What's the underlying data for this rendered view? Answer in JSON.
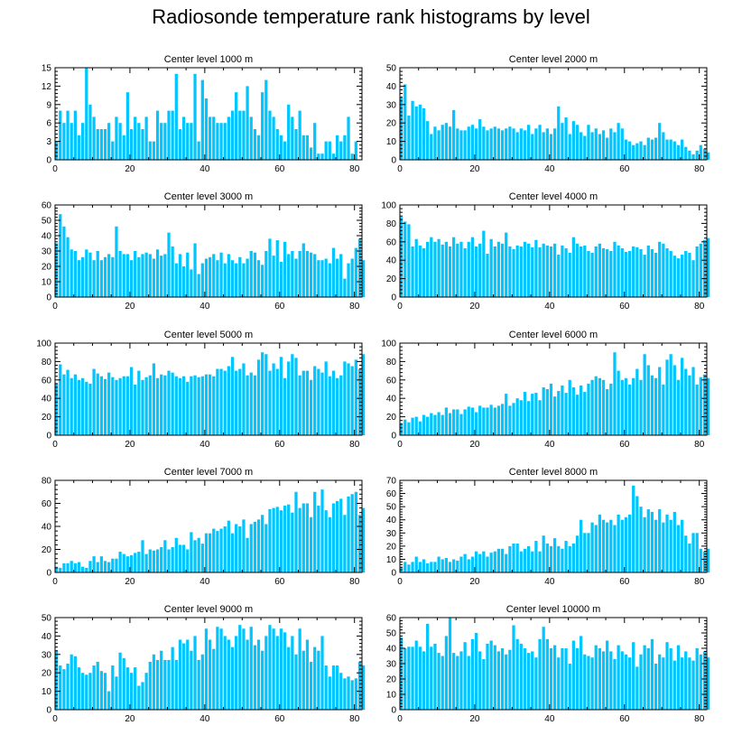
{
  "title": "Radiosonde temperature rank histograms by level",
  "colors": {
    "bar": "#00c5ff",
    "axis": "#000000"
  },
  "chart_data": [
    {
      "type": "bar",
      "title": "Center level 1000 m",
      "xlim": [
        0,
        82
      ],
      "ylim": [
        0,
        15
      ],
      "xticks": [
        0,
        20,
        40,
        60,
        80
      ],
      "yticks": [
        0,
        3,
        6,
        9,
        12,
        15
      ],
      "values": [
        3,
        8,
        6,
        8,
        6,
        8,
        4,
        6,
        15,
        9,
        7,
        5,
        5,
        5,
        6,
        3,
        7,
        6,
        4,
        11,
        5,
        7,
        6,
        5,
        7,
        3,
        3,
        8,
        6,
        6,
        8,
        8,
        14,
        5,
        7,
        6,
        6,
        14,
        3,
        13,
        10,
        7,
        7,
        6,
        6,
        6,
        7,
        8,
        11,
        8,
        8,
        12,
        7,
        5,
        4,
        11,
        13,
        8,
        7,
        5,
        4,
        3,
        9,
        7,
        5,
        8,
        4,
        4,
        2,
        6,
        1,
        1,
        3,
        3,
        1,
        4,
        3,
        4,
        7,
        1,
        3
      ]
    },
    {
      "type": "bar",
      "title": "Center level 2000 m",
      "xlim": [
        0,
        82
      ],
      "ylim": [
        0,
        50
      ],
      "xticks": [
        0,
        20,
        40,
        60,
        80
      ],
      "yticks": [
        0,
        10,
        20,
        30,
        40,
        50
      ],
      "values": [
        34,
        41,
        24,
        32,
        29,
        30,
        28,
        21,
        14,
        18,
        16,
        19,
        20,
        18,
        27,
        17,
        16,
        16,
        18,
        19,
        17,
        22,
        18,
        16,
        17,
        18,
        17,
        16,
        17,
        18,
        17,
        15,
        17,
        16,
        19,
        14,
        17,
        19,
        15,
        17,
        14,
        17,
        29,
        20,
        23,
        14,
        21,
        19,
        15,
        13,
        19,
        15,
        17,
        14,
        16,
        12,
        17,
        15,
        20,
        17,
        11,
        10,
        8,
        9,
        10,
        8,
        12,
        11,
        12,
        20,
        15,
        11,
        11,
        10,
        8,
        11,
        7,
        5,
        3,
        5,
        8,
        6,
        4
      ]
    },
    {
      "type": "bar",
      "title": "Center level 3000 m",
      "xlim": [
        0,
        82
      ],
      "ylim": [
        0,
        60
      ],
      "xticks": [
        0,
        20,
        40,
        60,
        80
      ],
      "yticks": [
        0,
        10,
        20,
        30,
        40,
        50,
        60
      ],
      "values": [
        35,
        54,
        46,
        39,
        31,
        30,
        24,
        26,
        31,
        29,
        24,
        30,
        24,
        26,
        28,
        26,
        46,
        30,
        28,
        28,
        24,
        30,
        26,
        28,
        29,
        28,
        25,
        31,
        27,
        28,
        42,
        33,
        22,
        28,
        20,
        29,
        18,
        35,
        15,
        22,
        25,
        26,
        28,
        24,
        29,
        22,
        28,
        24,
        22,
        26,
        22,
        25,
        30,
        29,
        24,
        21,
        30,
        38,
        27,
        37,
        23,
        36,
        28,
        30,
        25,
        30,
        35,
        30,
        29,
        28,
        24,
        24,
        25,
        22,
        32,
        25,
        28,
        12,
        22,
        25,
        32,
        38,
        24
      ]
    },
    {
      "type": "bar",
      "title": "Center level 4000 m",
      "xlim": [
        0,
        82
      ],
      "ylim": [
        0,
        100
      ],
      "xticks": [
        0,
        20,
        40,
        60,
        80
      ],
      "yticks": [
        0,
        20,
        40,
        60,
        80,
        100
      ],
      "values": [
        87,
        82,
        79,
        55,
        63,
        56,
        53,
        60,
        65,
        60,
        63,
        57,
        60,
        55,
        65,
        58,
        60,
        53,
        60,
        65,
        55,
        58,
        72,
        47,
        63,
        55,
        60,
        58,
        70,
        55,
        52,
        56,
        55,
        60,
        58,
        54,
        62,
        54,
        58,
        56,
        55,
        58,
        46,
        56,
        53,
        48,
        65,
        58,
        55,
        56,
        50,
        48,
        55,
        58,
        53,
        52,
        50,
        60,
        56,
        53,
        49,
        50,
        55,
        54,
        52,
        46,
        56,
        52,
        48,
        60,
        58,
        53,
        50,
        45,
        42,
        46,
        50,
        48,
        40,
        55,
        58,
        62,
        64
      ]
    },
    {
      "type": "bar",
      "title": "Center level 5000 m",
      "xlim": [
        0,
        82
      ],
      "ylim": [
        0,
        100
      ],
      "xticks": [
        0,
        20,
        40,
        60,
        80
      ],
      "yticks": [
        0,
        20,
        40,
        60,
        80,
        100
      ],
      "values": [
        56,
        77,
        66,
        71,
        62,
        66,
        60,
        62,
        58,
        56,
        72,
        67,
        64,
        61,
        68,
        63,
        60,
        62,
        64,
        64,
        74,
        55,
        70,
        60,
        63,
        65,
        78,
        62,
        66,
        65,
        70,
        68,
        64,
        62,
        64,
        58,
        64,
        65,
        63,
        64,
        66,
        66,
        64,
        72,
        72,
        70,
        75,
        85,
        70,
        72,
        78,
        65,
        68,
        65,
        82,
        90,
        88,
        70,
        78,
        72,
        85,
        62,
        80,
        88,
        84,
        65,
        70,
        70,
        60,
        75,
        72,
        68,
        80,
        64,
        70,
        62,
        65,
        80,
        78,
        75,
        82,
        72,
        88
      ]
    },
    {
      "type": "bar",
      "title": "Center level 6000 m",
      "xlim": [
        0,
        82
      ],
      "ylim": [
        0,
        100
      ],
      "xticks": [
        0,
        20,
        40,
        60,
        80
      ],
      "yticks": [
        0,
        20,
        40,
        60,
        80,
        100
      ],
      "values": [
        13,
        17,
        14,
        19,
        20,
        15,
        22,
        20,
        24,
        22,
        25,
        22,
        30,
        24,
        28,
        28,
        23,
        28,
        31,
        30,
        25,
        32,
        30,
        30,
        33,
        30,
        32,
        34,
        45,
        32,
        35,
        40,
        38,
        47,
        37,
        45,
        46,
        38,
        52,
        50,
        56,
        42,
        48,
        54,
        46,
        60,
        52,
        44,
        54,
        47,
        56,
        60,
        64,
        62,
        60,
        50,
        56,
        90,
        70,
        60,
        62,
        55,
        62,
        72,
        60,
        88,
        76,
        65,
        62,
        74,
        55,
        82,
        88,
        76,
        60,
        84,
        72,
        65,
        74,
        55,
        63,
        66,
        62
      ]
    },
    {
      "type": "bar",
      "title": "Center level 7000 m",
      "xlim": [
        0,
        82
      ],
      "ylim": [
        0,
        80
      ],
      "xticks": [
        0,
        20,
        40,
        60,
        80
      ],
      "yticks": [
        0,
        20,
        40,
        60,
        80
      ],
      "values": [
        5,
        4,
        8,
        8,
        10,
        8,
        9,
        5,
        4,
        10,
        14,
        9,
        14,
        10,
        9,
        12,
        12,
        18,
        16,
        14,
        15,
        17,
        18,
        28,
        16,
        20,
        19,
        20,
        22,
        28,
        20,
        22,
        30,
        24,
        24,
        20,
        35,
        28,
        30,
        25,
        34,
        34,
        38,
        36,
        38,
        40,
        45,
        34,
        42,
        40,
        46,
        30,
        42,
        44,
        46,
        50,
        42,
        55,
        56,
        57,
        54,
        58,
        59,
        52,
        70,
        56,
        60,
        60,
        48,
        70,
        58,
        72,
        54,
        48,
        60,
        62,
        64,
        50,
        66,
        68,
        70,
        50,
        56
      ]
    },
    {
      "type": "bar",
      "title": "Center level 8000 m",
      "xlim": [
        0,
        82
      ],
      "ylim": [
        0,
        70
      ],
      "xticks": [
        0,
        20,
        40,
        60,
        80
      ],
      "yticks": [
        0,
        10,
        20,
        30,
        40,
        50,
        60,
        70
      ],
      "values": [
        4,
        8,
        6,
        8,
        12,
        8,
        10,
        7,
        8,
        8,
        12,
        10,
        11,
        8,
        10,
        9,
        12,
        14,
        10,
        12,
        16,
        14,
        16,
        12,
        15,
        16,
        18,
        18,
        14,
        20,
        22,
        22,
        16,
        18,
        20,
        16,
        24,
        16,
        28,
        22,
        20,
        26,
        20,
        18,
        24,
        20,
        22,
        28,
        40,
        30,
        30,
        38,
        36,
        44,
        40,
        38,
        40,
        36,
        44,
        40,
        42,
        44,
        66,
        58,
        50,
        42,
        48,
        46,
        40,
        48,
        38,
        44,
        40,
        46,
        36,
        40,
        28,
        22,
        30,
        30,
        18,
        16,
        18
      ]
    },
    {
      "type": "bar",
      "title": "Center level 9000 m",
      "xlim": [
        0,
        82
      ],
      "ylim": [
        0,
        50
      ],
      "xticks": [
        0,
        20,
        40,
        60,
        80
      ],
      "yticks": [
        0,
        10,
        20,
        30,
        40,
        50
      ],
      "values": [
        32,
        24,
        22,
        25,
        30,
        29,
        23,
        20,
        19,
        20,
        24,
        26,
        21,
        20,
        10,
        24,
        18,
        31,
        28,
        23,
        20,
        23,
        13,
        15,
        20,
        26,
        30,
        27,
        32,
        27,
        27,
        34,
        27,
        38,
        36,
        38,
        32,
        40,
        27,
        30,
        44,
        38,
        33,
        45,
        44,
        40,
        38,
        34,
        40,
        46,
        44,
        38,
        45,
        35,
        38,
        32,
        40,
        46,
        44,
        40,
        44,
        42,
        34,
        40,
        30,
        44,
        32,
        38,
        26,
        34,
        32,
        40,
        24,
        18,
        24,
        24,
        20,
        17,
        18,
        16,
        17,
        26,
        24
      ]
    },
    {
      "type": "bar",
      "title": "Center level 10000 m",
      "xlim": [
        0,
        82
      ],
      "ylim": [
        0,
        60
      ],
      "xticks": [
        0,
        20,
        40,
        60,
        80
      ],
      "yticks": [
        0,
        10,
        20,
        30,
        40,
        50,
        60
      ],
      "values": [
        47,
        40,
        41,
        41,
        45,
        41,
        38,
        56,
        41,
        43,
        37,
        35,
        48,
        60,
        37,
        35,
        38,
        44,
        35,
        46,
        50,
        38,
        33,
        43,
        45,
        42,
        38,
        40,
        36,
        39,
        55,
        46,
        43,
        40,
        37,
        38,
        34,
        46,
        54,
        46,
        40,
        42,
        34,
        40,
        40,
        30,
        45,
        40,
        48,
        36,
        35,
        34,
        42,
        40,
        38,
        45,
        38,
        33,
        42,
        38,
        36,
        34,
        44,
        28,
        36,
        42,
        40,
        46,
        30,
        36,
        34,
        44,
        40,
        32,
        42,
        34,
        38,
        34,
        32,
        40,
        36,
        38,
        34
      ]
    }
  ]
}
